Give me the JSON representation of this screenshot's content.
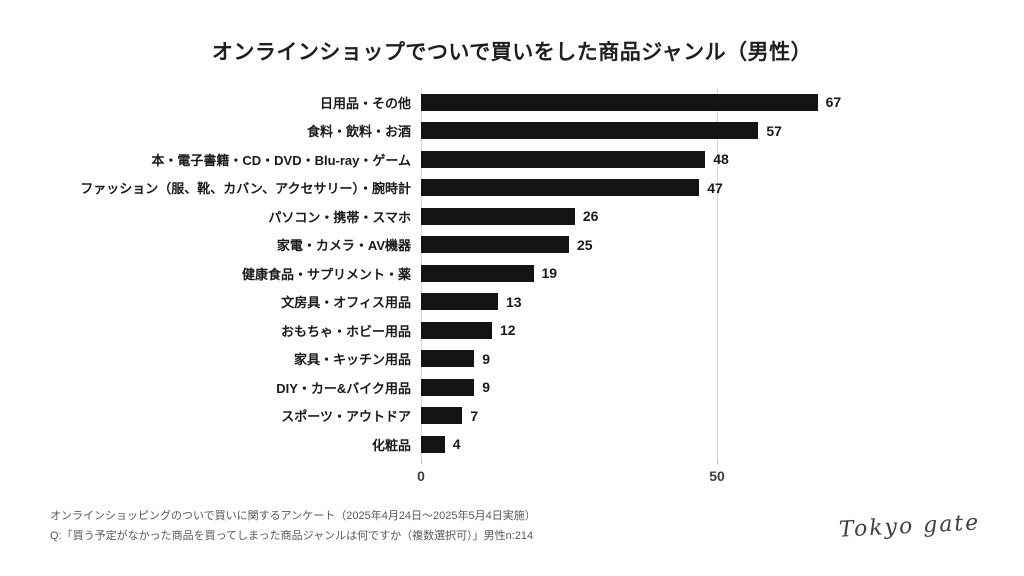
{
  "title": "オンラインショップでついで買いをした商品ジャンル（男性）",
  "chart_data": {
    "type": "bar",
    "orientation": "horizontal",
    "title": "オンラインショップでついで買いをした商品ジャンル（男性）",
    "categories": [
      "日用品・その他",
      "食料・飲料・お酒",
      "本・電子書籍・CD・DVD・Blu-ray・ゲーム",
      "ファッション（服、靴、カバン、アクセサリー）・腕時計",
      "パソコン・携帯・スマホ",
      "家電・カメラ・AV機器",
      "健康食品・サプリメント・薬",
      "文房具・オフィス用品",
      "おもちゃ・ホビー用品",
      "家具・キッチン用品",
      "DIY・カー&バイク用品",
      "スポーツ・アウトドア",
      "化粧品"
    ],
    "values": [
      67,
      57,
      48,
      47,
      26,
      25,
      19,
      13,
      12,
      9,
      9,
      7,
      4
    ],
    "x_ticks": [
      "0",
      "50"
    ],
    "xlim": [
      0,
      93
    ],
    "xlabel": "",
    "ylabel": "",
    "grid": "vertical-only",
    "legend": "none",
    "bar_color": "#141414",
    "gridline_color": "#d9d9d9"
  },
  "footer": {
    "line1": "オンラインショッピングのついで買いに関するアンケート（2025年4月24日〜2025年5月4日実施）",
    "line2": "Q:「買う予定がなかった商品を買ってしまった商品ジャンルは何ですか（複数選択可）」男性n:214"
  },
  "logo": "Tokyo gate"
}
